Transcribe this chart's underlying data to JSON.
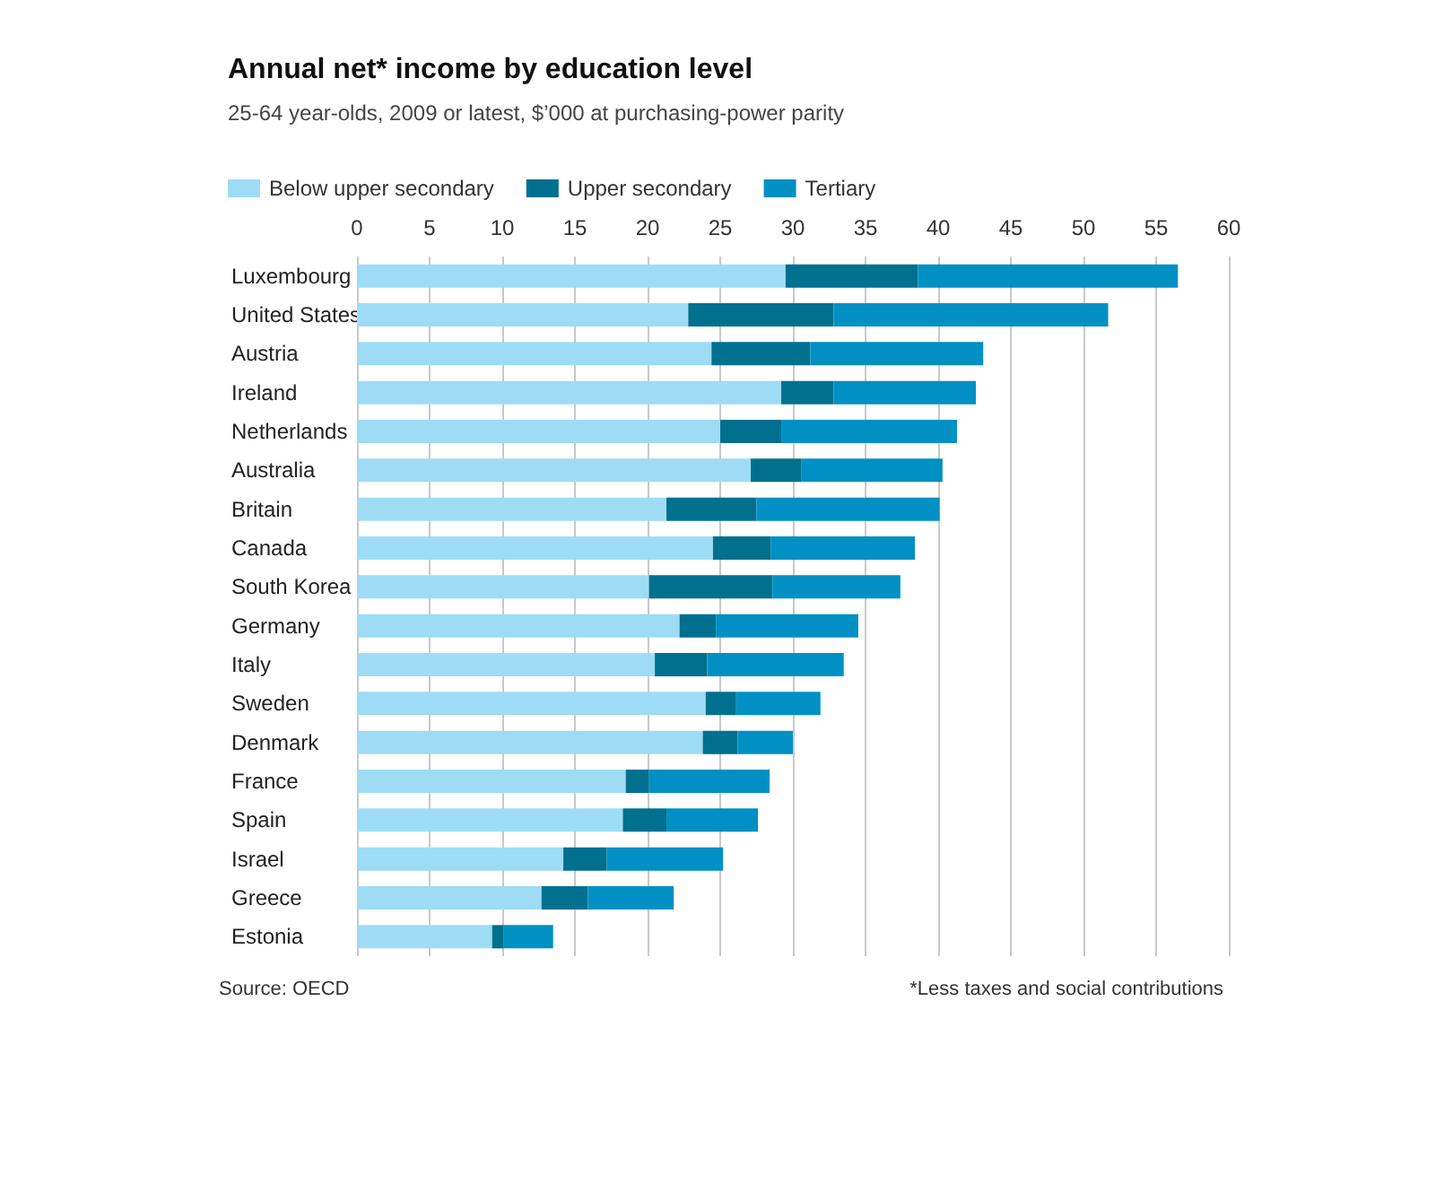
{
  "chart_data": {
    "type": "bar",
    "orientation": "horizontal",
    "stacked": true,
    "title": "Annual net* income by education level",
    "subtitle": "25-64 year-olds, 2009 or latest, $’000 at purchasing-power parity",
    "categories": [
      "Luxembourg",
      "United States",
      "Austria",
      "Ireland",
      "Netherlands",
      "Australia",
      "Britain",
      "Canada",
      "South Korea",
      "Germany",
      "Italy",
      "Sweden",
      "Denmark",
      "France",
      "Spain",
      "Israel",
      "Greece",
      "Estonia"
    ],
    "series": [
      {
        "name": "Below upper secondary",
        "color": "#9edcf5",
        "values": [
          29.5,
          22.8,
          24.4,
          29.2,
          25.0,
          27.1,
          21.3,
          24.5,
          20.1,
          22.2,
          20.5,
          24.0,
          23.8,
          18.5,
          18.3,
          14.2,
          12.7,
          9.3
        ]
      },
      {
        "name": "Upper secondary",
        "color": "#00708f",
        "values": [
          9.1,
          10.0,
          6.8,
          3.6,
          4.2,
          3.5,
          6.2,
          4.0,
          8.5,
          2.5,
          3.6,
          2.1,
          2.4,
          1.6,
          3.0,
          3.0,
          3.2,
          0.8
        ]
      },
      {
        "name": "Tertiary",
        "color": "#0090c4",
        "values": [
          17.9,
          18.9,
          11.9,
          9.8,
          12.1,
          9.7,
          12.6,
          9.9,
          8.8,
          9.8,
          9.4,
          5.8,
          3.8,
          8.3,
          6.3,
          8.0,
          5.9,
          3.4
        ]
      }
    ],
    "xlim": [
      0,
      60
    ],
    "xticks": [
      0,
      5,
      10,
      15,
      20,
      25,
      30,
      35,
      40,
      45,
      50,
      55,
      60
    ],
    "grid": "x",
    "legend": "top left",
    "annotations": [
      "Source: OECD",
      "*Less taxes and social contributions"
    ]
  }
}
